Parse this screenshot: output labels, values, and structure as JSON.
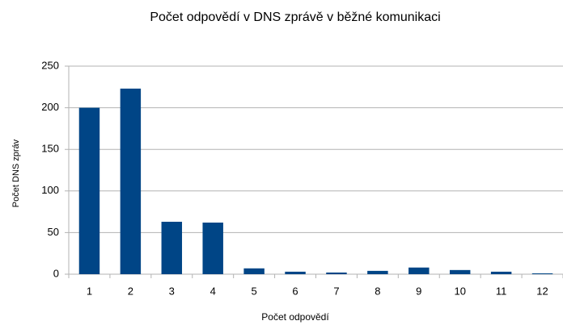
{
  "chart_data": {
    "type": "bar",
    "title": "Počet odpovědí v DNS zprávě v běžné komunikaci",
    "xlabel": "Počet odpovědí",
    "ylabel": "Počet DNS zpráv",
    "categories": [
      "1",
      "2",
      "3",
      "4",
      "5",
      "6",
      "7",
      "8",
      "9",
      "10",
      "11",
      "12"
    ],
    "values": [
      200,
      223,
      63,
      62,
      7,
      3,
      2,
      4,
      8,
      5,
      3,
      1
    ],
    "color": "#004586",
    "ylim": [
      0,
      250
    ],
    "yticks": [
      0,
      50,
      100,
      150,
      200,
      250
    ],
    "grid": true
  }
}
